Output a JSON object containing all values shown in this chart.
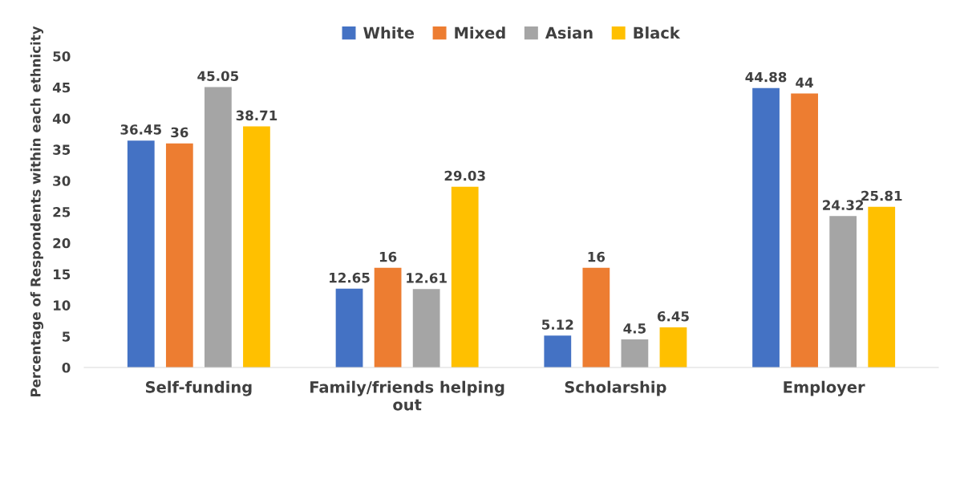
{
  "chart_data": {
    "type": "bar",
    "ylabel": "Percentage of Respondents within each ethnicity",
    "categories": [
      "Self-funding",
      "Family/friends helping\nout",
      "Scholarship",
      "Employer"
    ],
    "series": [
      {
        "name": "White",
        "color": "#4472c4",
        "values": [
          36.45,
          12.65,
          5.12,
          44.88
        ]
      },
      {
        "name": "Mixed",
        "color": "#ed7d31",
        "values": [
          36,
          16,
          16,
          44
        ]
      },
      {
        "name": "Asian",
        "color": "#a5a5a5",
        "values": [
          45.05,
          12.61,
          4.5,
          24.32
        ]
      },
      {
        "name": "Black",
        "color": "#ffc000",
        "values": [
          38.71,
          29.03,
          6.45,
          25.81
        ]
      }
    ],
    "ylim": [
      0,
      50
    ],
    "yticks": [
      0,
      5,
      10,
      15,
      20,
      25,
      30,
      35,
      40,
      45,
      50
    ],
    "grid": false,
    "legend": "top",
    "data_labels": true
  }
}
